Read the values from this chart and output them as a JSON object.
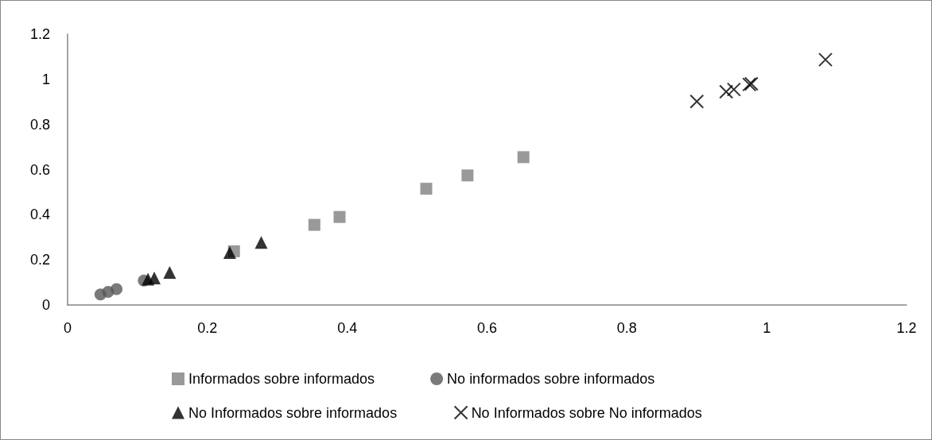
{
  "chart_data": {
    "type": "scatter",
    "xlim": [
      0,
      1.2
    ],
    "ylim": [
      0,
      1.2
    ],
    "xticks": [
      0,
      0.2,
      0.4,
      0.6,
      0.8,
      1,
      1.2
    ],
    "yticks": [
      0,
      0.2,
      0.4,
      0.6,
      0.8,
      1,
      1.2
    ],
    "grid": false,
    "legend": "bottom",
    "series": [
      {
        "name": "Informados sobre informados",
        "color": "#808080",
        "marker": "square",
        "x": [
          0.238,
          0.353,
          0.389,
          0.513,
          0.572,
          0.652
        ],
        "values": [
          0.238,
          0.355,
          0.39,
          0.515,
          0.574,
          0.655
        ]
      },
      {
        "name": "No informados sobre informados",
        "color": "#595959",
        "marker": "circle",
        "x": [
          0.047,
          0.058,
          0.07,
          0.109
        ],
        "values": [
          0.047,
          0.058,
          0.07,
          0.108
        ]
      },
      {
        "name": "No Informados sobre informados",
        "color": "#000000",
        "marker": "triangle",
        "x": [
          0.115,
          0.124,
          0.146,
          0.232,
          0.277
        ],
        "values": [
          0.114,
          0.12,
          0.144,
          0.232,
          0.277
        ]
      },
      {
        "name": "No Informados sobre No informados",
        "color": "#000000",
        "marker": "cross",
        "x": [
          0.9,
          0.942,
          0.953,
          0.975,
          0.978,
          1.084
        ],
        "values": [
          0.902,
          0.945,
          0.955,
          0.977,
          0.98,
          1.087
        ]
      }
    ]
  }
}
